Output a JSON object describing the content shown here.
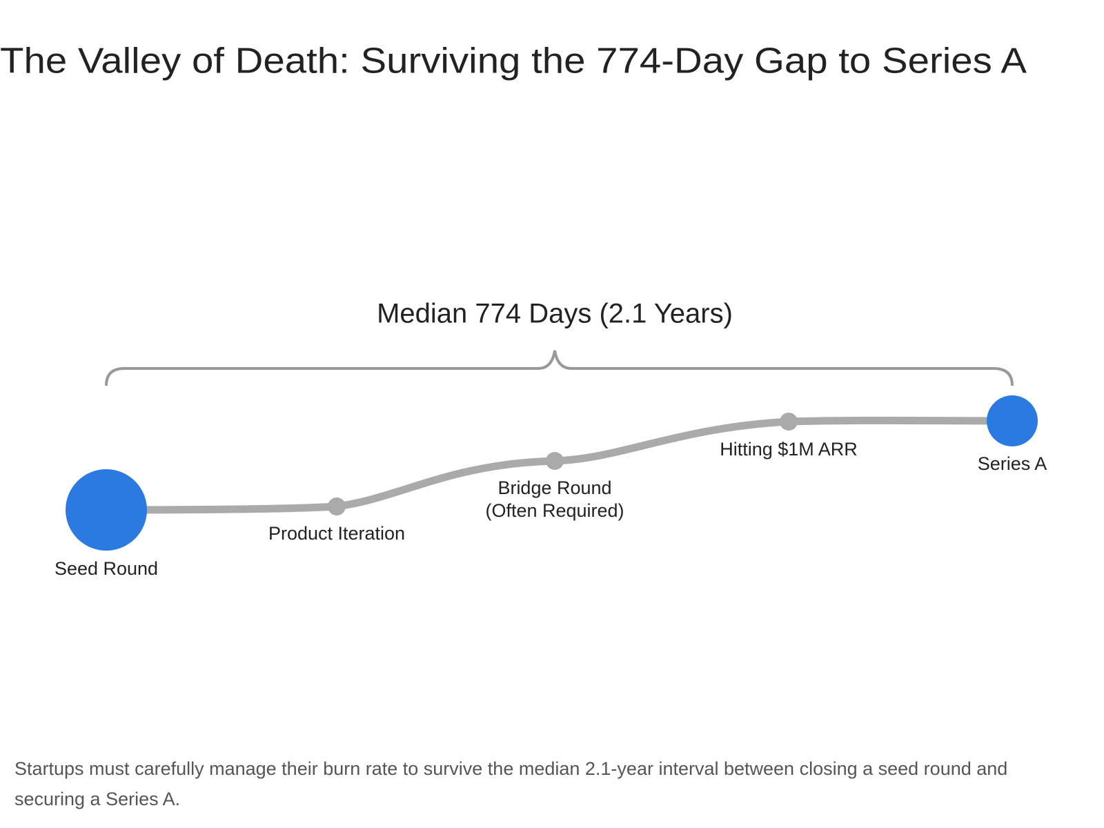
{
  "title": "The Valley of Death: Surviving the 774-Day Gap to Series A",
  "diagram": {
    "span_label": "Median 774 Days (2.1 Years)",
    "nodes": [
      {
        "lines": [
          "Seed Round"
        ]
      },
      {
        "lines": [
          "Product Iteration"
        ]
      },
      {
        "lines": [
          "Bridge Round",
          "(Often Required)"
        ]
      },
      {
        "lines": [
          "Hitting $1M ARR"
        ]
      },
      {
        "lines": [
          "Series A"
        ]
      }
    ]
  },
  "caption": "Startups must carefully manage their burn rate to survive the median 2.1-year interval between closing a seed round and securing a Series A."
}
